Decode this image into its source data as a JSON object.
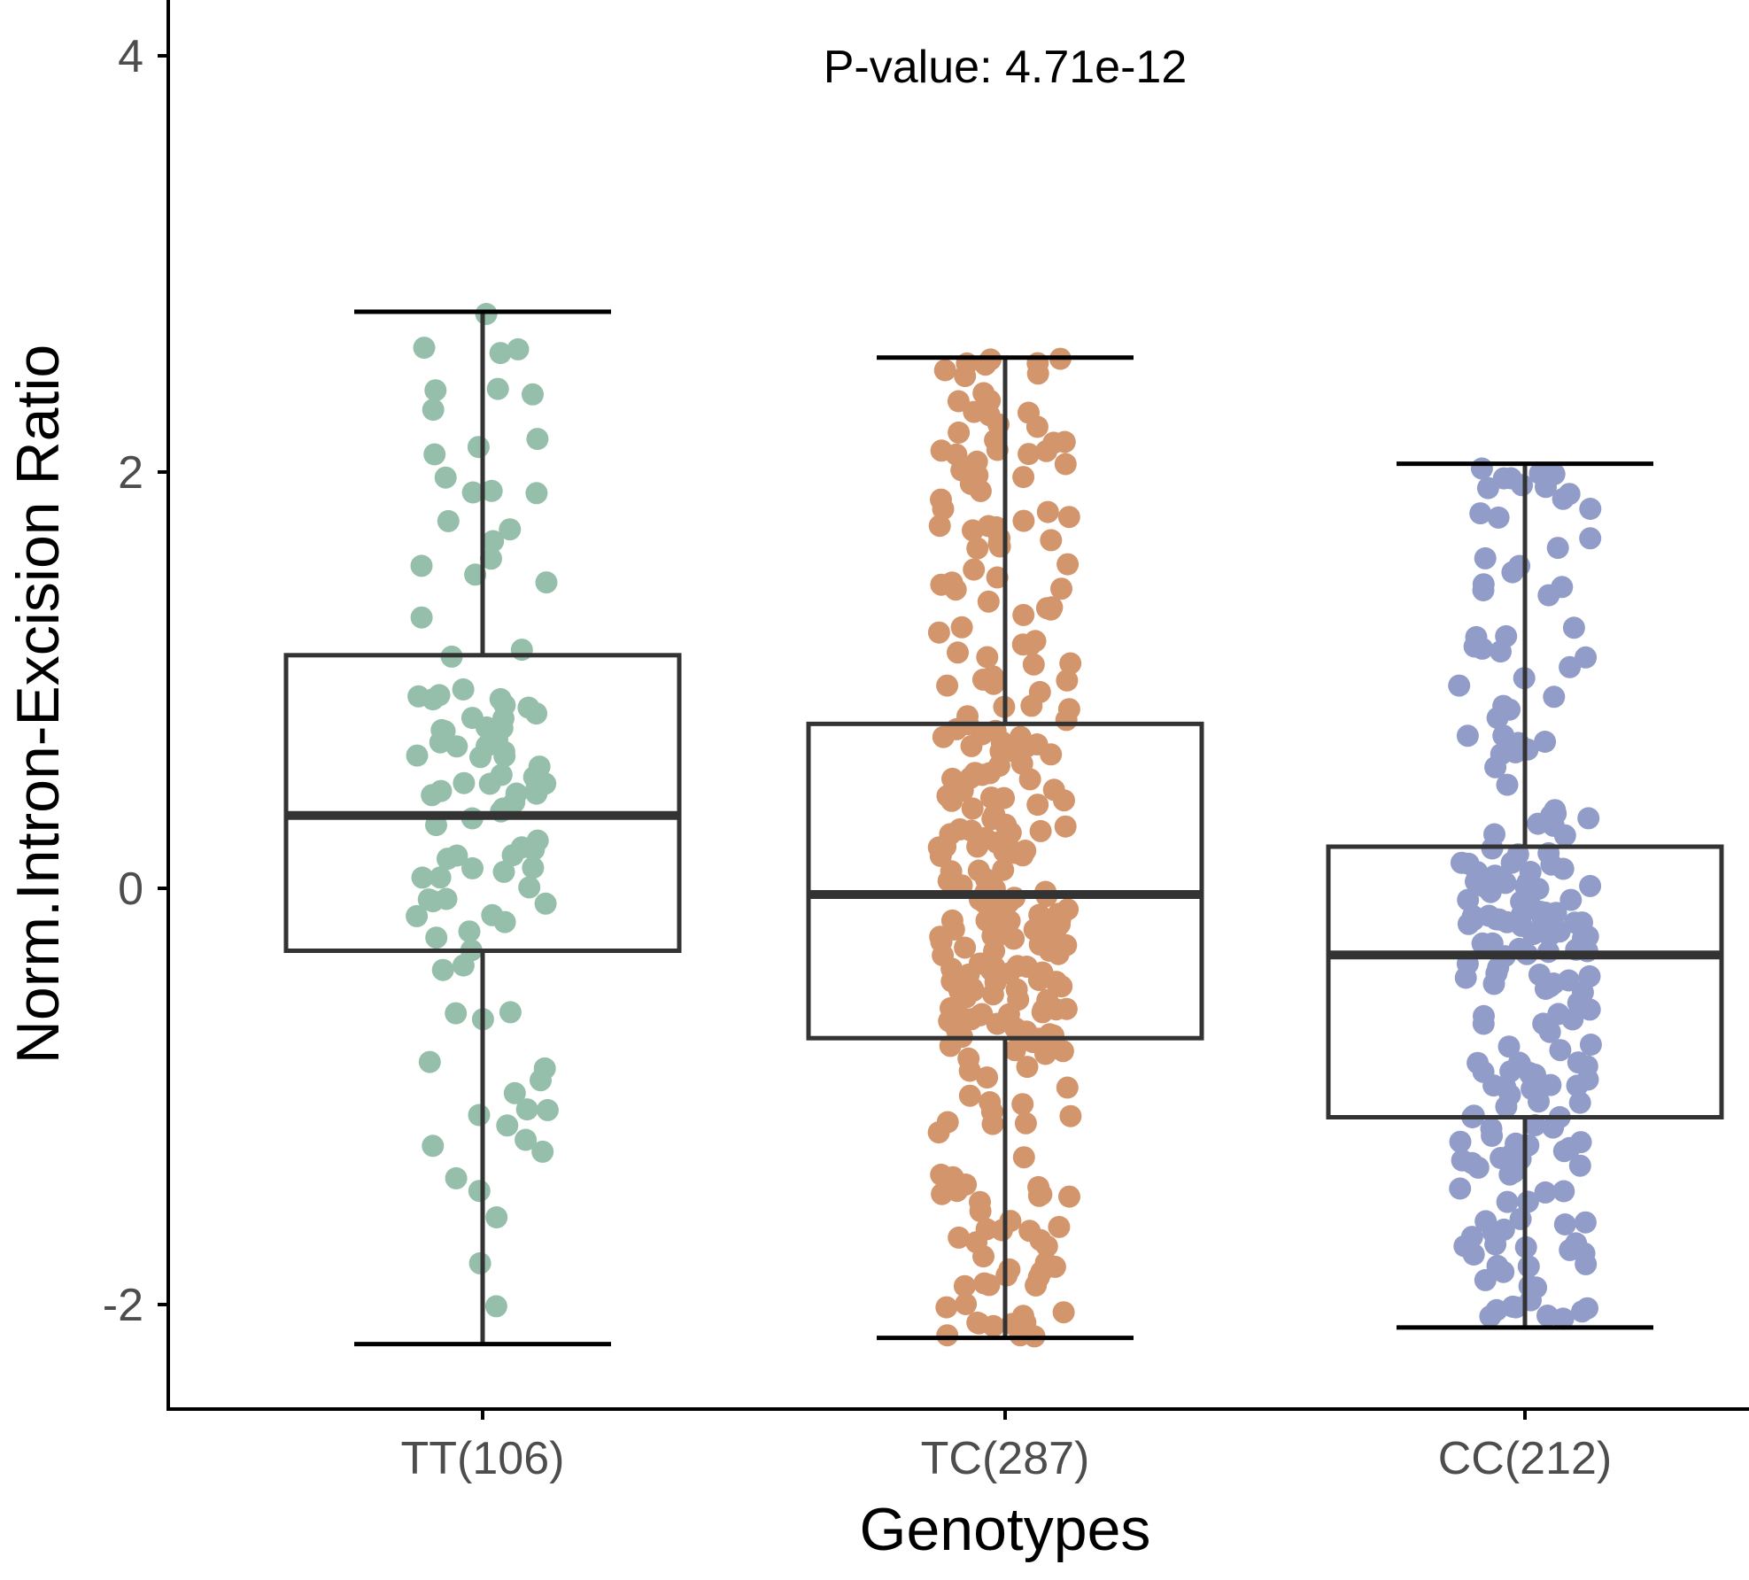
{
  "chart_data": {
    "type": "boxplot",
    "xlabel": "Genotypes",
    "ylabel": "Norm.Intron-Excision Ratio",
    "annotation": "P-value: 4.71e-12",
    "ylim": [
      -2.5,
      4.2
    ],
    "yticks": [
      -2,
      0,
      2,
      4
    ],
    "yticklabels": [
      "-2",
      "0",
      "2",
      "4"
    ],
    "grid": false,
    "legend": "none",
    "categories": [
      "TT(106)",
      "TC(287)",
      "CC(212)"
    ],
    "groups": [
      {
        "category": "TT(106)",
        "n": 106,
        "color": "#95bfab",
        "whisker_low": -2.19,
        "q1": -0.3,
        "median": 0.35,
        "q3": 1.12,
        "whisker_high": 2.77
      },
      {
        "category": "TC(287)",
        "n": 287,
        "color": "#d3956b",
        "whisker_low": -2.16,
        "q1": -0.72,
        "median": -0.03,
        "q3": 0.79,
        "whisker_high": 2.55
      },
      {
        "category": "CC(212)",
        "n": 212,
        "color": "#919dc8",
        "whisker_low": -2.11,
        "q1": -1.1,
        "median": -0.32,
        "q3": 0.2,
        "whisker_high": 2.04
      }
    ],
    "colors": {
      "box_stroke": "#333333",
      "axis": "#000000",
      "tick_text": "#4d4d4d"
    }
  }
}
